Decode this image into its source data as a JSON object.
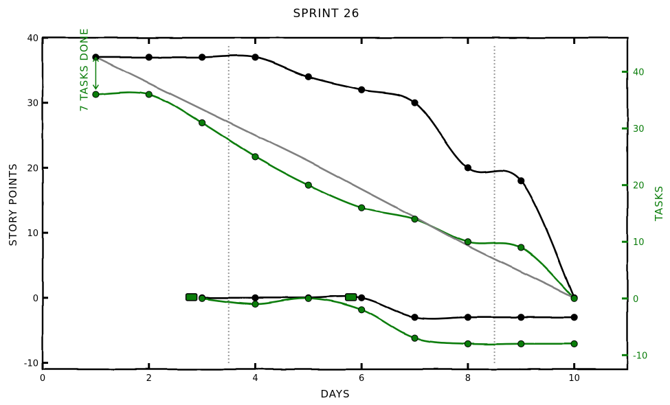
{
  "chart_data": {
    "type": "line",
    "title": "SPRINT 26",
    "xlabel": "DAYS",
    "ylabel_left": "STORY POINTS",
    "ylabel_right": "TASKS",
    "xlim": [
      0,
      11
    ],
    "ylim_left": [
      -11,
      40
    ],
    "ylim_right": [
      -12.5,
      46
    ],
    "x_ticks": [
      0,
      2,
      4,
      6,
      8,
      10
    ],
    "y_ticks_left": [
      -10,
      0,
      10,
      20,
      30,
      40
    ],
    "y_ticks_right": [
      -10,
      0,
      10,
      20,
      30,
      40
    ],
    "x_tick_labels": [
      "0",
      "2",
      "4",
      "6",
      "8",
      "10"
    ],
    "y_tick_labels_left": [
      "-10",
      "0",
      "10",
      "20",
      "30",
      "40"
    ],
    "y_tick_labels_right": [
      "-10",
      "0",
      "10",
      "20",
      "30",
      "40"
    ],
    "vlines": [
      3.5,
      8.5
    ],
    "series": [
      {
        "axis": "left",
        "color": "#000000",
        "x": [
          1,
          2,
          3,
          4,
          5,
          6,
          7,
          8,
          9,
          10
        ],
        "y": [
          37,
          37,
          37,
          37,
          34,
          32,
          30,
          20,
          18,
          0
        ]
      },
      {
        "axis": "right",
        "color": "#0a7d0a",
        "x": [
          1,
          2,
          3,
          4,
          5,
          6,
          7,
          8,
          9,
          10
        ],
        "y": [
          36,
          36,
          31,
          25,
          20,
          16,
          14,
          10,
          9,
          0
        ]
      },
      {
        "axis": "left",
        "color": "#808080",
        "x": [
          1,
          2,
          3,
          4,
          5,
          6,
          7,
          8,
          9,
          10
        ],
        "y": [
          37,
          33,
          29,
          25,
          21,
          16.7,
          12.4,
          8,
          4,
          0
        ]
      },
      {
        "axis": "left",
        "color": "#000000",
        "x": [
          3,
          4,
          5,
          6,
          7,
          8,
          9,
          10
        ],
        "y": [
          0,
          0,
          0,
          0,
          -3,
          -3,
          -3,
          -3
        ]
      },
      {
        "axis": "right",
        "color": "#0a7d0a",
        "x": [
          3,
          4,
          5,
          6,
          7,
          8,
          9,
          10
        ],
        "y": [
          0,
          -1,
          0,
          -2,
          -7,
          -8,
          -8,
          -8
        ]
      }
    ],
    "baseline": {
      "y": 0,
      "color": "#1010e0",
      "style": "dotted"
    },
    "markers_at_zero": [
      2.8,
      5.8
    ],
    "annotation": {
      "text": "7 TASKS DONE",
      "x": 1,
      "y_from": 36,
      "y_to": 43,
      "color": "#0a7d0a"
    },
    "grid": false,
    "legend": "none"
  }
}
